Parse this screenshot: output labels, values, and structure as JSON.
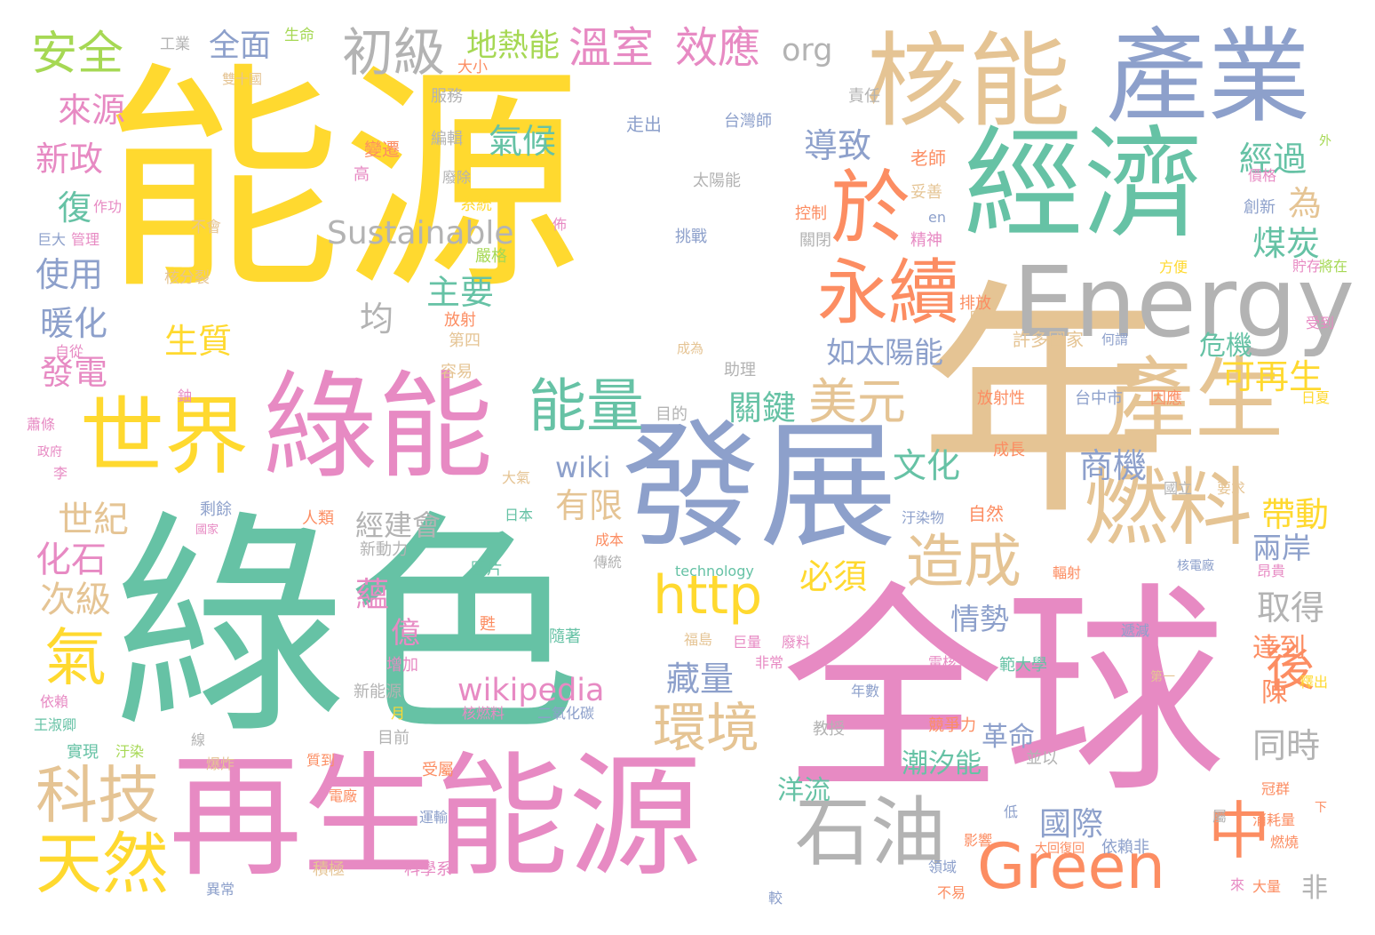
{
  "word_cloud": {
    "palette": {
      "yellow": "#FFD92F",
      "green": "#66C2A5",
      "pink": "#E78AC3",
      "blue": "#8DA0CB",
      "tan": "#E5C494",
      "orange": "#FC8D62",
      "lime": "#A6D854",
      "gray": "#B3B3B3"
    },
    "words": [
      {
        "text": "能源",
        "color": "#FFD92F"
      },
      {
        "text": "綠色",
        "color": "#66C2A5"
      },
      {
        "text": "全球",
        "color": "#E78AC3"
      },
      {
        "text": "年",
        "color": "#E5C494"
      },
      {
        "text": "再生能源",
        "color": "#E78AC3"
      },
      {
        "text": "發展",
        "color": "#8DA0CB"
      },
      {
        "text": "經濟",
        "color": "#66C2A5"
      },
      {
        "text": "產業",
        "color": "#8DA0CB"
      },
      {
        "text": "核能",
        "color": "#E5C494"
      },
      {
        "text": "綠能",
        "color": "#E78AC3"
      },
      {
        "text": "Energy",
        "color": "#B3B3B3"
      },
      {
        "text": "世界",
        "color": "#FFD92F"
      },
      {
        "text": "產生",
        "color": "#E5C494"
      },
      {
        "text": "燃料",
        "color": "#E5C494"
      },
      {
        "text": "於",
        "color": "#FC8D62"
      },
      {
        "text": "永續",
        "color": "#FC8D62"
      },
      {
        "text": "Green",
        "color": "#FC8D62"
      },
      {
        "text": "中",
        "color": "#FC8D62"
      },
      {
        "text": "造成",
        "color": "#E5C494"
      },
      {
        "text": "石油",
        "color": "#B3B3B3"
      },
      {
        "text": "http",
        "color": "#FFD92F"
      },
      {
        "text": "能量",
        "color": "#66C2A5"
      },
      {
        "text": "環境",
        "color": "#E5C494"
      },
      {
        "text": "科技",
        "color": "#E5C494"
      },
      {
        "text": "天然",
        "color": "#FFD92F"
      },
      {
        "text": "氣",
        "color": "#FFD92F"
      },
      {
        "text": "安全",
        "color": "#A6D854"
      },
      {
        "text": "初級",
        "color": "#B3B3B3"
      },
      {
        "text": "溫室",
        "color": "#E78AC3"
      },
      {
        "text": "效應",
        "color": "#E78AC3"
      },
      {
        "text": "美元",
        "color": "#E5C494"
      },
      {
        "text": "後",
        "color": "#FC8D62"
      },
      {
        "text": "Sustainable",
        "color": "#B3B3B3"
      },
      {
        "text": "wikipedia",
        "color": "#E78AC3"
      },
      {
        "text": "全面",
        "color": "#8DA0CB"
      },
      {
        "text": "org",
        "color": "#B3B3B3"
      },
      {
        "text": "地熱能",
        "color": "#A6D854"
      },
      {
        "text": "來源",
        "color": "#E78AC3"
      },
      {
        "text": "氣候",
        "color": "#66C2A5"
      },
      {
        "text": "導致",
        "color": "#8DA0CB"
      },
      {
        "text": "經過",
        "color": "#66C2A5"
      },
      {
        "text": "為",
        "color": "#E5C494"
      },
      {
        "text": "煤炭",
        "color": "#66C2A5"
      },
      {
        "text": "主要",
        "color": "#66C2A5"
      },
      {
        "text": "均",
        "color": "#B3B3B3"
      },
      {
        "text": "如太陽能",
        "color": "#8DA0CB"
      },
      {
        "text": "危機",
        "color": "#66C2A5"
      },
      {
        "text": "可再生",
        "color": "#FFD92F"
      },
      {
        "text": "關鍵",
        "color": "#66C2A5"
      },
      {
        "text": "wiki",
        "color": "#8DA0CB"
      },
      {
        "text": "有限",
        "color": "#E5C494"
      },
      {
        "text": "文化",
        "color": "#66C2A5"
      },
      {
        "text": "商機",
        "color": "#8DA0CB"
      },
      {
        "text": "帶動",
        "color": "#FFD92F"
      },
      {
        "text": "兩岸",
        "color": "#8DA0CB"
      },
      {
        "text": "新政",
        "color": "#E78AC3"
      },
      {
        "text": "復",
        "color": "#66C2A5"
      },
      {
        "text": "使用",
        "color": "#8DA0CB"
      },
      {
        "text": "暖化",
        "color": "#8DA0CB"
      },
      {
        "text": "發電",
        "color": "#E78AC3"
      },
      {
        "text": "生質",
        "color": "#FFD92F"
      },
      {
        "text": "世紀",
        "color": "#E5C494"
      },
      {
        "text": "化石",
        "color": "#E78AC3"
      },
      {
        "text": "次級",
        "color": "#E5C494"
      },
      {
        "text": "經建會",
        "color": "#B3B3B3"
      },
      {
        "text": "必須",
        "color": "#FFD92F"
      },
      {
        "text": "蘊",
        "color": "#E78AC3"
      },
      {
        "text": "情勢",
        "color": "#8DA0CB"
      },
      {
        "text": "億",
        "color": "#E78AC3"
      },
      {
        "text": "藏量",
        "color": "#8DA0CB"
      },
      {
        "text": "取得",
        "color": "#B3B3B3"
      },
      {
        "text": "達到",
        "color": "#FC8D62"
      },
      {
        "text": "陳",
        "color": "#FC8D62"
      },
      {
        "text": "革命",
        "color": "#8DA0CB"
      },
      {
        "text": "同時",
        "color": "#B3B3B3"
      },
      {
        "text": "洋流",
        "color": "#66C2A5"
      },
      {
        "text": "潮汐能",
        "color": "#66C2A5"
      },
      {
        "text": "國際",
        "color": "#8DA0CB"
      },
      {
        "text": "非",
        "color": "#B3B3B3"
      },
      {
        "text": "工業",
        "color": "#B3B3B3"
      },
      {
        "text": "生命",
        "color": "#A6D854"
      },
      {
        "text": "大小",
        "color": "#FC8D62"
      },
      {
        "text": "雙十國",
        "color": "#E5C494"
      },
      {
        "text": "服務",
        "color": "#B3B3B3"
      },
      {
        "text": "編輯",
        "color": "#B3B3B3"
      },
      {
        "text": "變遷",
        "color": "#FC8D62"
      },
      {
        "text": "走出",
        "color": "#8DA0CB"
      },
      {
        "text": "責任",
        "color": "#B3B3B3"
      },
      {
        "text": "台灣師",
        "color": "#8DA0CB"
      },
      {
        "text": "老師",
        "color": "#FC8D62"
      },
      {
        "text": "外",
        "color": "#A6D854"
      },
      {
        "text": "太陽能",
        "color": "#B3B3B3"
      },
      {
        "text": "控制",
        "color": "#FC8D62"
      },
      {
        "text": "妥善",
        "color": "#E5C494"
      },
      {
        "text": "價格",
        "color": "#E78AC3"
      },
      {
        "text": "創新",
        "color": "#8DA0CB"
      },
      {
        "text": "挑戰",
        "color": "#8DA0CB"
      },
      {
        "text": "精神",
        "color": "#E78AC3"
      },
      {
        "text": "en",
        "color": "#8DA0CB"
      },
      {
        "text": "關閉",
        "color": "#B3B3B3"
      },
      {
        "text": "不會",
        "color": "#E5C494"
      },
      {
        "text": "核分裂",
        "color": "#E5C494"
      },
      {
        "text": "嚴格",
        "color": "#A6D854"
      },
      {
        "text": "巨大",
        "color": "#8DA0CB"
      },
      {
        "text": "管理",
        "color": "#E78AC3"
      },
      {
        "text": "作功",
        "color": "#E78AC3"
      },
      {
        "text": "系統",
        "color": "#FFD92F"
      },
      {
        "text": "佈",
        "color": "#E78AC3"
      },
      {
        "text": "高",
        "color": "#E78AC3"
      },
      {
        "text": "廢除",
        "color": "#B3B3B3"
      },
      {
        "text": "方便",
        "color": "#FFD92F"
      },
      {
        "text": "貯存",
        "color": "#E78AC3"
      },
      {
        "text": "將在",
        "color": "#A6D854"
      },
      {
        "text": "排放",
        "color": "#FC8D62"
      },
      {
        "text": "反應",
        "color": "#E5C494"
      },
      {
        "text": "放射",
        "color": "#FC8D62"
      },
      {
        "text": "第四",
        "color": "#E5C494"
      },
      {
        "text": "容易",
        "color": "#E5C494"
      },
      {
        "text": "成為",
        "color": "#E5C494"
      },
      {
        "text": "許多國家",
        "color": "#E5C494"
      },
      {
        "text": "何謂",
        "color": "#8DA0CB"
      },
      {
        "text": "受到",
        "color": "#E78AC3"
      },
      {
        "text": "自從",
        "color": "#E78AC3"
      },
      {
        "text": "鈾",
        "color": "#E78AC3"
      },
      {
        "text": "助理",
        "color": "#B3B3B3"
      },
      {
        "text": "放射性",
        "color": "#FC8D62"
      },
      {
        "text": "台中市",
        "color": "#8DA0CB"
      },
      {
        "text": "因應",
        "color": "#FC8D62"
      },
      {
        "text": "日夏",
        "color": "#FFD92F"
      },
      {
        "text": "目的",
        "color": "#B3B3B3"
      },
      {
        "text": "蕭條",
        "color": "#E78AC3"
      },
      {
        "text": "政府",
        "color": "#E78AC3"
      },
      {
        "text": "成長",
        "color": "#FC8D62"
      },
      {
        "text": "李",
        "color": "#E78AC3"
      },
      {
        "text": "大氣",
        "color": "#E5C494"
      },
      {
        "text": "國立",
        "color": "#B3B3B3"
      },
      {
        "text": "要求",
        "color": "#E5C494"
      },
      {
        "text": "剩餘",
        "color": "#8DA0CB"
      },
      {
        "text": "人類",
        "color": "#FC8D62"
      },
      {
        "text": "日本",
        "color": "#66C2A5"
      },
      {
        "text": "國家",
        "color": "#E78AC3"
      },
      {
        "text": "汙染物",
        "color": "#8DA0CB"
      },
      {
        "text": "自然",
        "color": "#FC8D62"
      },
      {
        "text": "新動力",
        "color": "#B3B3B3"
      },
      {
        "text": "成本",
        "color": "#FC8D62"
      },
      {
        "text": "technology",
        "color": "#66C2A5"
      },
      {
        "text": "圖片",
        "color": "#66C2A5"
      },
      {
        "text": "傳統",
        "color": "#B3B3B3"
      },
      {
        "text": "昂貴",
        "color": "#E78AC3"
      },
      {
        "text": "輻射",
        "color": "#FC8D62"
      },
      {
        "text": "核電廠",
        "color": "#8DA0CB"
      },
      {
        "text": "甦",
        "color": "#FC8D62"
      },
      {
        "text": "隨著",
        "color": "#66C2A5"
      },
      {
        "text": "福島",
        "color": "#E5C494"
      },
      {
        "text": "巨量",
        "color": "#E78AC3"
      },
      {
        "text": "廢料",
        "color": "#E78AC3"
      },
      {
        "text": "遞減",
        "color": "#8DA0CB"
      },
      {
        "text": "非常",
        "color": "#E78AC3"
      },
      {
        "text": "電核",
        "color": "#E78AC3"
      },
      {
        "text": "範大學",
        "color": "#66C2A5"
      },
      {
        "text": "增加",
        "color": "#E78AC3"
      },
      {
        "text": "新能源",
        "color": "#B3B3B3"
      },
      {
        "text": "年數",
        "color": "#8DA0CB"
      },
      {
        "text": "第一",
        "color": "#E5C494"
      },
      {
        "text": "釋出",
        "color": "#FFD92F"
      },
      {
        "text": "依賴",
        "color": "#E78AC3"
      },
      {
        "text": "月",
        "color": "#FFD92F"
      },
      {
        "text": "核燃料",
        "color": "#E78AC3"
      },
      {
        "text": "二氧化碳",
        "color": "#8DA0CB"
      },
      {
        "text": "王淑卿",
        "color": "#66C2A5"
      },
      {
        "text": "線",
        "color": "#B3B3B3"
      },
      {
        "text": "目前",
        "color": "#B3B3B3"
      },
      {
        "text": "教授",
        "color": "#B3B3B3"
      },
      {
        "text": "競爭力",
        "color": "#FC8D62"
      },
      {
        "text": "實現",
        "color": "#66C2A5"
      },
      {
        "text": "汙染",
        "color": "#A6D854"
      },
      {
        "text": "爆炸",
        "color": "#E5C494"
      },
      {
        "text": "質到",
        "color": "#FC8D62"
      },
      {
        "text": "受屬",
        "color": "#FC8D62"
      },
      {
        "text": "並以",
        "color": "#B3B3B3"
      },
      {
        "text": "冠群",
        "color": "#FC8D62"
      },
      {
        "text": "電廠",
        "color": "#FC8D62"
      },
      {
        "text": "運輸",
        "color": "#8DA0CB"
      },
      {
        "text": "低",
        "color": "#8DA0CB"
      },
      {
        "text": "屬",
        "color": "#B3B3B3"
      },
      {
        "text": "消耗量",
        "color": "#FC8D62"
      },
      {
        "text": "下",
        "color": "#FC8D62"
      },
      {
        "text": "影響",
        "color": "#FC8D62"
      },
      {
        "text": "積極",
        "color": "#E5C494"
      },
      {
        "text": "科學系",
        "color": "#E78AC3"
      },
      {
        "text": "大回復回",
        "color": "#FC8D62"
      },
      {
        "text": "依賴非",
        "color": "#8DA0CB"
      },
      {
        "text": "燃燒",
        "color": "#FC8D62"
      },
      {
        "text": "異常",
        "color": "#8DA0CB"
      },
      {
        "text": "領域",
        "color": "#8DA0CB"
      },
      {
        "text": "不易",
        "color": "#FC8D62"
      },
      {
        "text": "來",
        "color": "#E78AC3"
      },
      {
        "text": "大量",
        "color": "#FC8D62"
      },
      {
        "text": "較",
        "color": "#8DA0CB"
      }
    ]
  }
}
